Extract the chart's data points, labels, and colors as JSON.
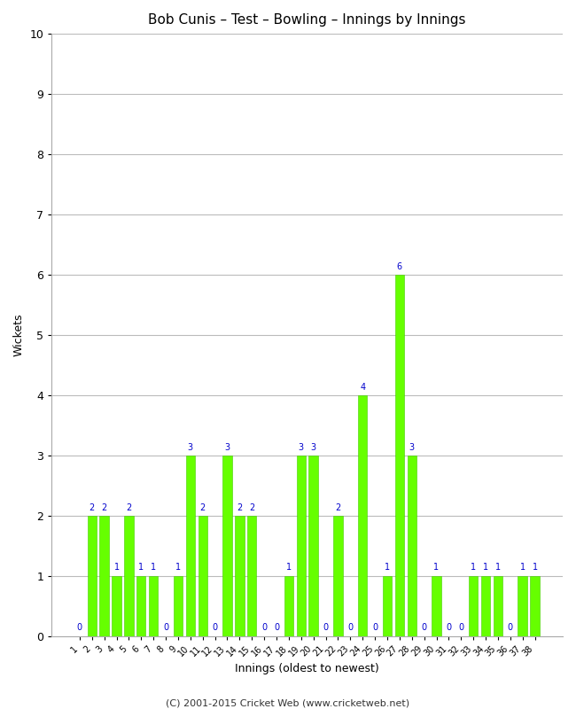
{
  "title": "Bob Cunis – Test – Bowling – Innings by Innings",
  "xlabel": "Innings (oldest to newest)",
  "ylabel": "Wickets",
  "bar_color": "#66ff00",
  "bar_edge_color": "#44cc00",
  "label_color": "#0000cc",
  "background_color": "#ffffff",
  "grid_color": "#bbbbbb",
  "ylim": [
    0,
    10
  ],
  "yticks": [
    0,
    1,
    2,
    3,
    4,
    5,
    6,
    7,
    8,
    9,
    10
  ],
  "innings": [
    1,
    2,
    3,
    4,
    5,
    6,
    7,
    8,
    9,
    10,
    11,
    12,
    13,
    14,
    15,
    16,
    17,
    18,
    19,
    20,
    21,
    22,
    23,
    24,
    25,
    26,
    27,
    28,
    29,
    30,
    31,
    32,
    33,
    34,
    35,
    36,
    37,
    38
  ],
  "wickets": [
    0,
    2,
    2,
    1,
    2,
    1,
    1,
    0,
    1,
    3,
    2,
    0,
    3,
    2,
    2,
    0,
    0,
    1,
    3,
    3,
    0,
    2,
    0,
    4,
    0,
    1,
    6,
    3,
    0,
    1,
    0,
    0,
    1,
    1,
    1,
    0,
    1,
    1
  ],
  "footer": "(C) 2001-2015 Cricket Web (www.cricketweb.net)",
  "title_fontsize": 11,
  "axis_label_fontsize": 9,
  "tick_label_fontsize": 7,
  "bar_label_fontsize": 7,
  "footer_fontsize": 8
}
